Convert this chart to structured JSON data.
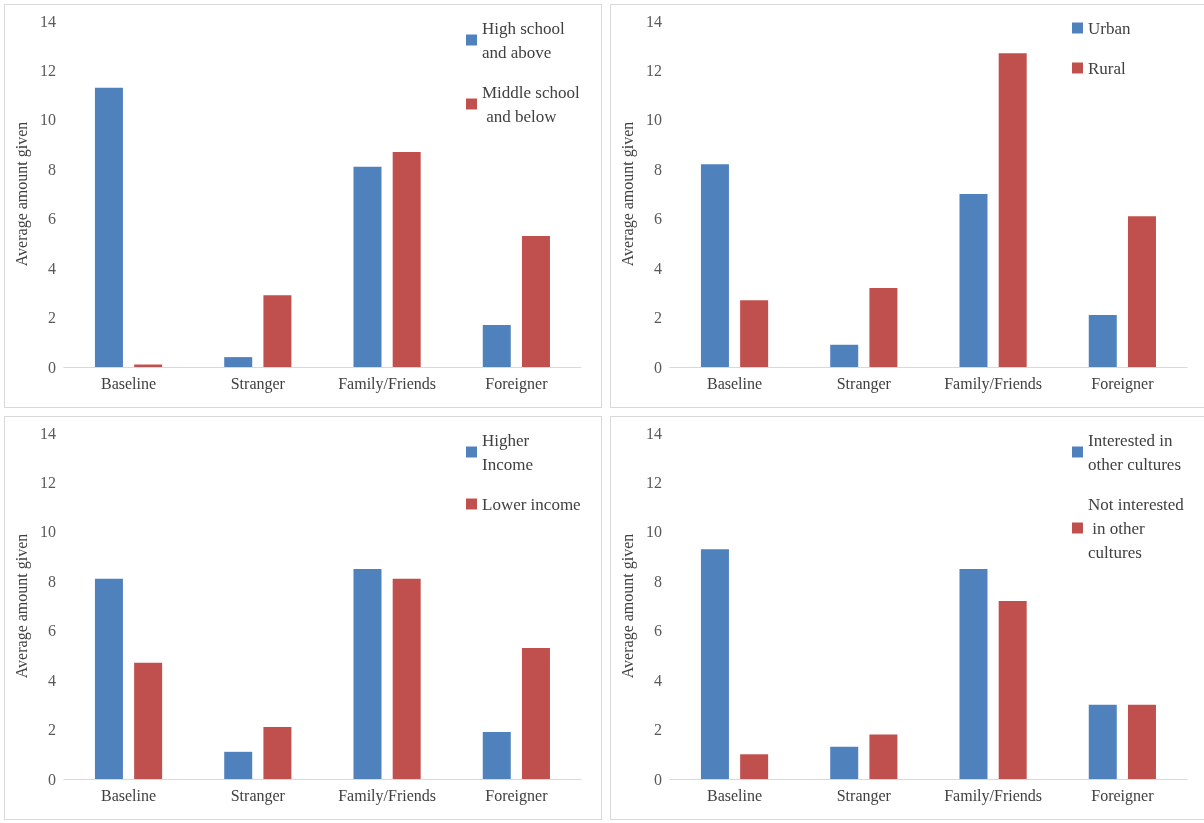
{
  "chart_data": [
    {
      "type": "bar",
      "ylabel": "Average amount given",
      "categories": [
        "Baseline",
        "Stranger",
        "Family/Friends",
        "Foreigner"
      ],
      "ylim": [
        0,
        14
      ],
      "yticks": [
        0,
        2,
        4,
        6,
        8,
        10,
        12,
        14
      ],
      "grid": false,
      "legend": "top right",
      "series": [
        {
          "name": "High school and above",
          "color": "#4f81bd",
          "values": [
            11.3,
            0.4,
            8.1,
            1.7
          ]
        },
        {
          "name": "Middle school and below",
          "color": "#c0504d",
          "values": [
            0.1,
            2.9,
            8.7,
            5.3
          ]
        }
      ]
    },
    {
      "type": "bar",
      "ylabel": "Average amount given",
      "categories": [
        "Baseline",
        "Stranger",
        "Family/Friends",
        "Foreigner"
      ],
      "ylim": [
        0,
        14
      ],
      "yticks": [
        0,
        2,
        4,
        6,
        8,
        10,
        12,
        14
      ],
      "grid": false,
      "legend": "top right",
      "series": [
        {
          "name": "Urban",
          "color": "#4f81bd",
          "values": [
            8.2,
            0.9,
            7.0,
            2.1
          ]
        },
        {
          "name": "Rural",
          "color": "#c0504d",
          "values": [
            2.7,
            3.2,
            12.7,
            6.1
          ]
        }
      ]
    },
    {
      "type": "bar",
      "ylabel": "Average amount given",
      "categories": [
        "Baseline",
        "Stranger",
        "Family/Friends",
        "Foreigner"
      ],
      "ylim": [
        0,
        14
      ],
      "yticks": [
        0,
        2,
        4,
        6,
        8,
        10,
        12,
        14
      ],
      "grid": false,
      "legend": "top right",
      "series": [
        {
          "name": "Higher Income",
          "color": "#4f81bd",
          "values": [
            8.1,
            1.1,
            8.5,
            1.9
          ]
        },
        {
          "name": "Lower income",
          "color": "#c0504d",
          "values": [
            4.7,
            2.1,
            8.1,
            5.3
          ]
        }
      ]
    },
    {
      "type": "bar",
      "ylabel": "Average amount given",
      "categories": [
        "Baseline",
        "Stranger",
        "Family/Friends",
        "Foreigner"
      ],
      "ylim": [
        0,
        14
      ],
      "yticks": [
        0,
        2,
        4,
        6,
        8,
        10,
        12,
        14
      ],
      "grid": false,
      "legend": "top right",
      "series": [
        {
          "name": "Interested in other cultures",
          "color": "#4f81bd",
          "values": [
            9.3,
            1.3,
            8.5,
            3.0
          ]
        },
        {
          "name": "Not interested in other cultures",
          "color": "#c0504d",
          "values": [
            1.0,
            1.8,
            7.2,
            3.0
          ]
        }
      ]
    }
  ]
}
